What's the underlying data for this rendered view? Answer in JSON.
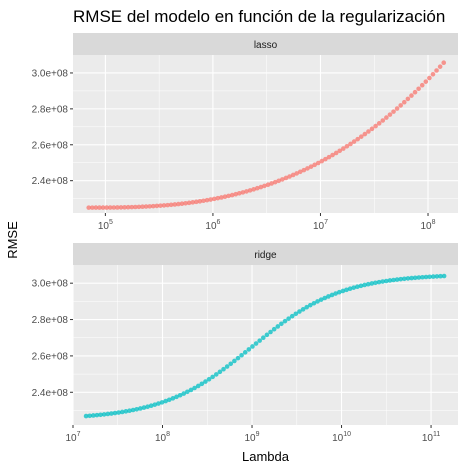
{
  "chart_data": {
    "type": "scatter",
    "title": "RMSE del modelo en función de la regularización",
    "xlabel": "Lambda",
    "ylabel": "RMSE",
    "x_scale": "log10",
    "y_scale": "linear",
    "grid": true,
    "legend": "none",
    "panels": [
      {
        "name": "lasso",
        "color": "#f8766d",
        "xlim": [
          50000,
          190000000
        ],
        "ylim": [
          222000000,
          310000000
        ],
        "x_tick_labels": [
          {
            "base": "10",
            "exp": "5",
            "value": 100000
          },
          {
            "base": "10",
            "exp": "6",
            "value": 1000000
          },
          {
            "base": "10",
            "exp": "7",
            "value": 10000000
          },
          {
            "base": "10",
            "exp": "8",
            "value": 100000000
          }
        ],
        "y_tick_labels": [
          {
            "label": "2.4e+08",
            "value": 240000000
          },
          {
            "label": "2.6e+08",
            "value": 260000000
          },
          {
            "label": "2.8e+08",
            "value": 280000000
          },
          {
            "label": "3.0e+08",
            "value": 300000000
          }
        ],
        "x_range": [
          70000,
          140000000
        ],
        "n_points": 100,
        "curve": {
          "kind": "power",
          "base": 225000000,
          "top": 305700000,
          "exponent": 2.7
        }
      },
      {
        "name": "ridge",
        "color": "#00bfc4",
        "xlim": [
          10000000,
          200000000000
        ],
        "ylim": [
          222000000,
          310000000
        ],
        "x_tick_labels": [
          {
            "base": "10",
            "exp": "7",
            "value": 10000000
          },
          {
            "base": "10",
            "exp": "8",
            "value": 100000000
          },
          {
            "base": "10",
            "exp": "9",
            "value": 1000000000
          },
          {
            "base": "10",
            "exp": "10",
            "value": 10000000000
          },
          {
            "base": "10",
            "exp": "11",
            "value": 100000000000
          }
        ],
        "y_tick_labels": [
          {
            "label": "2.4e+08",
            "value": 240000000
          },
          {
            "label": "2.6e+08",
            "value": 260000000
          },
          {
            "label": "2.8e+08",
            "value": 280000000
          },
          {
            "label": "3.0e+08",
            "value": 300000000
          }
        ],
        "x_range": [
          14000000,
          140000000000
        ],
        "n_points": 100,
        "curve": {
          "kind": "logistic",
          "low": 225000000,
          "high": 305000000,
          "center_log10": 9.0,
          "scale": 0.5
        }
      }
    ]
  }
}
